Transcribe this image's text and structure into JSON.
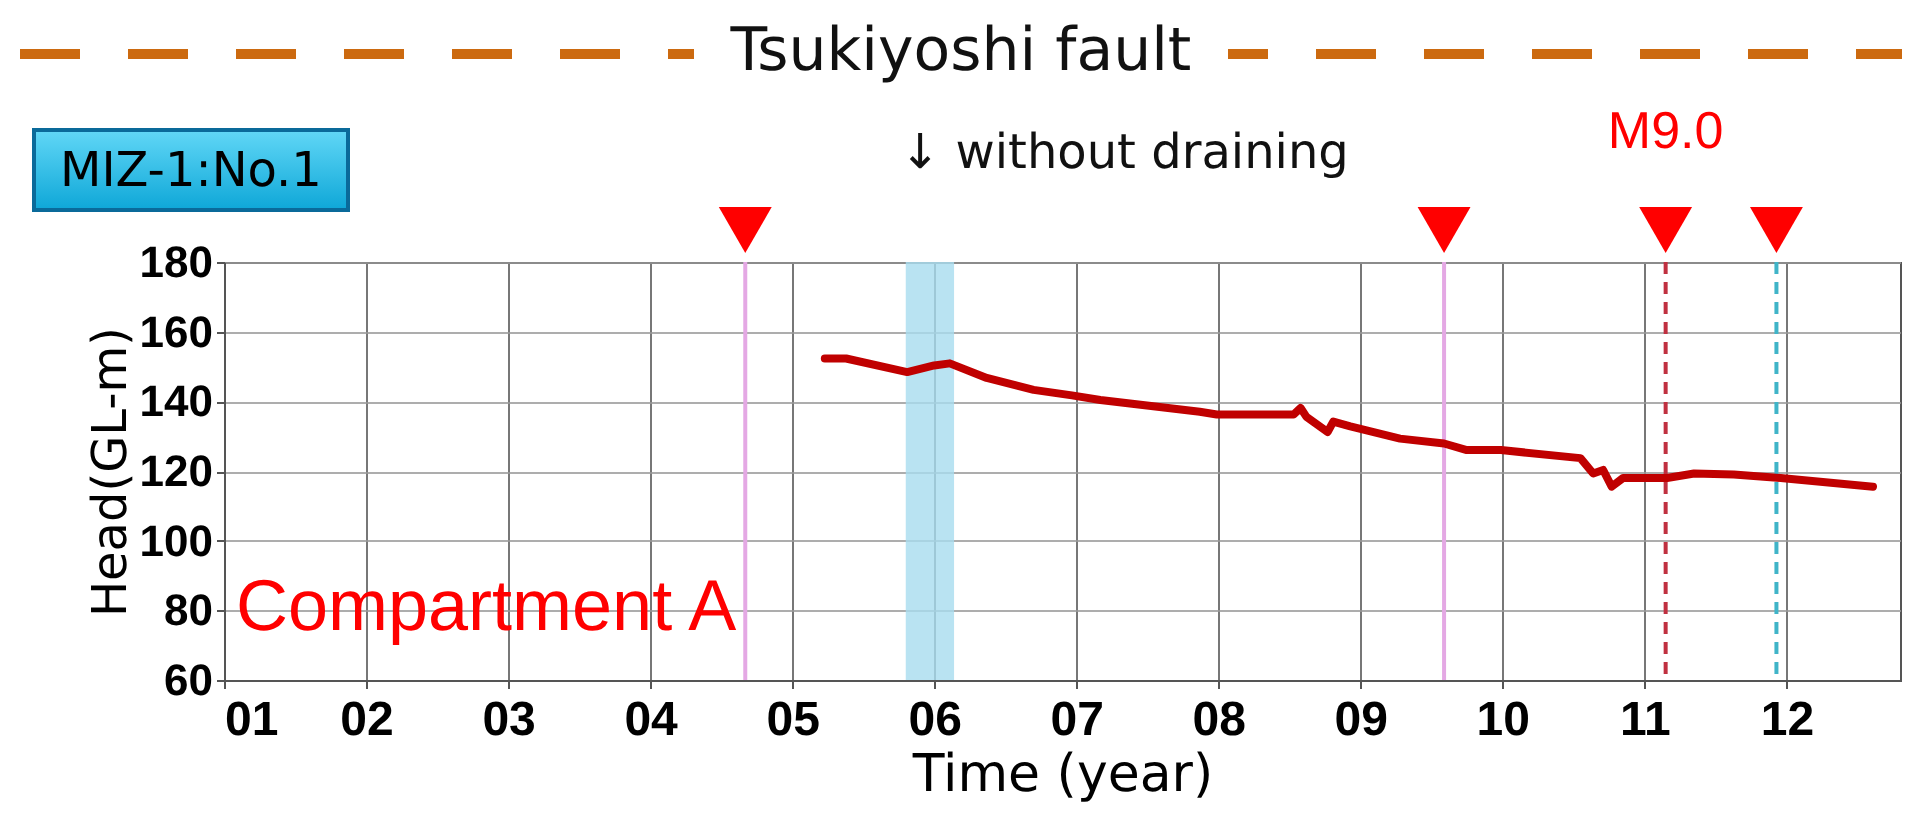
{
  "chart_data": {
    "type": "line",
    "title": "Tsukiyoshi fault",
    "subtitle": "MIZ-1:No.1",
    "xlabel": "Time (year)",
    "ylabel": "Head(GL-m)",
    "annotations": [
      "↓ without draining",
      "Compartment A"
    ],
    "x": [
      2005.23,
      2005.38,
      2005.81,
      2006.0,
      2006.11,
      2006.37,
      2006.7,
      2006.97,
      2007.17,
      2007.87,
      2007.99,
      2008.53,
      2008.58,
      2008.62,
      2008.77,
      2008.81,
      2008.93,
      2009.28,
      2009.59,
      2009.75,
      2009.99,
      2010.55,
      2010.64,
      2010.71,
      2010.77,
      2010.85,
      2011.16,
      2011.35,
      2011.63,
      2011.96,
      2012.61
    ],
    "series": [
      {
        "color": "#c00000",
        "values": [
          152.3,
          152.3,
          148.4,
          150.3,
          150.9,
          146.7,
          143.3,
          141.7,
          140.4,
          137,
          136.2,
          136.2,
          138.1,
          135.6,
          131.2,
          134.2,
          132.8,
          129.3,
          127.9,
          126,
          126,
          123.7,
          119.3,
          120.3,
          115.5,
          118,
          118,
          119.3,
          119,
          118,
          115.5
        ]
      }
    ],
    "xlim": [
      2001,
      2012.8
    ],
    "xticks": [
      {
        "value": 2001,
        "label": "01"
      },
      {
        "value": 2002,
        "label": "02"
      },
      {
        "value": 2003,
        "label": "03"
      },
      {
        "value": 2004,
        "label": "04"
      },
      {
        "value": 2005,
        "label": "05"
      },
      {
        "value": 2006,
        "label": "06"
      },
      {
        "value": 2007,
        "label": "07"
      },
      {
        "value": 2008,
        "label": "08"
      },
      {
        "value": 2009,
        "label": "09"
      },
      {
        "value": 2010,
        "label": "10"
      },
      {
        "value": 2011,
        "label": "11"
      },
      {
        "value": 2012,
        "label": "12"
      }
    ],
    "ylim": [
      60,
      180
    ],
    "yticks": [
      60,
      80,
      100,
      120,
      140,
      160,
      180
    ],
    "ref_lines": [
      {
        "axis": "x",
        "value": 2004.67,
        "color": "#e4a8e4",
        "line_style": "solid"
      },
      {
        "axis": "x",
        "value": 2009.59,
        "color": "#e4a8e4",
        "line_style": "solid"
      },
      {
        "axis": "x",
        "value": 2011.15,
        "label": "M9.0",
        "color": "#c03040",
        "line_style": "dashed"
      },
      {
        "axis": "x",
        "value": 2011.93,
        "color": "#40b4c8",
        "line_style": "dashed"
      }
    ],
    "bands": [
      {
        "axis": "x",
        "from": 2005.8,
        "to": 2006.14,
        "color": "#a8dcef"
      }
    ],
    "grid": true,
    "marker": "none",
    "line_style": "solid"
  }
}
